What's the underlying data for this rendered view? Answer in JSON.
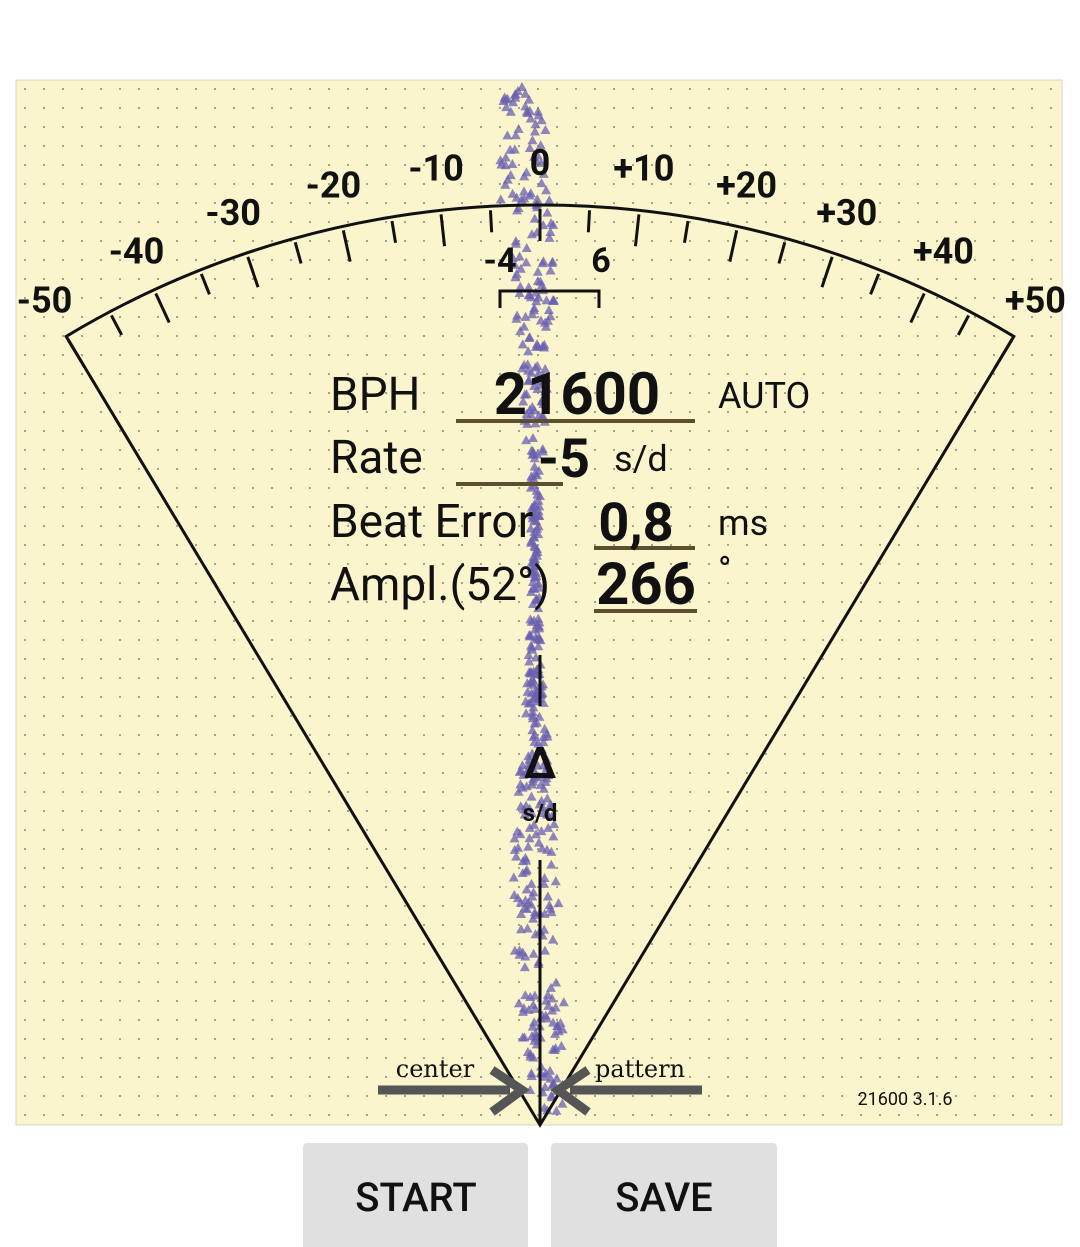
{
  "scale": {
    "labels": [
      "-50",
      "-40",
      "-30",
      "-20",
      "-10",
      "0",
      "+10",
      "+20",
      "+30",
      "+40",
      "+50"
    ],
    "window_labels": [
      "-4",
      "6"
    ]
  },
  "readout": {
    "rows": [
      {
        "label": "BPH",
        "value": "21600",
        "unit": "AUTO"
      },
      {
        "label": "Rate",
        "value": "-5",
        "unit": "s/d"
      },
      {
        "label": "Beat Error",
        "value": "0,8",
        "unit": "ms"
      },
      {
        "label": "Ampl.(52°)",
        "value": "266",
        "unit": "°"
      }
    ]
  },
  "delta": {
    "symbol": "Δ",
    "unit": "s/d"
  },
  "arrows": {
    "left": "center",
    "right": "pattern"
  },
  "version": "21600 3.1.6",
  "buttons": [
    "START",
    "SAVE"
  ]
}
